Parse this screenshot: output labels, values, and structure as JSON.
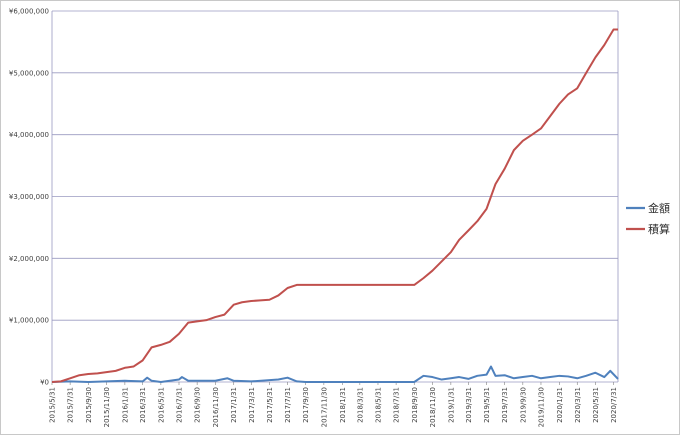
{
  "chart_data": {
    "type": "line",
    "y_ticks": [
      "¥0",
      "¥1,000,000",
      "¥2,000,000",
      "¥3,000,000",
      "¥4,000,000",
      "¥5,000,000",
      "¥6,000,000"
    ],
    "ylim": [
      0,
      6000000
    ],
    "grid": true,
    "legend_position": "right",
    "x_tick_labels": [
      "2015/5/31",
      "2015/7/31",
      "2015/9/30",
      "2015/11/30",
      "2016/1/31",
      "2016/3/31",
      "2016/5/31",
      "2016/7/31",
      "2016/9/30",
      "2016/11/30",
      "2017/1/31",
      "2017/3/31",
      "2017/5/31",
      "2017/7/31",
      "2017/9/30",
      "2017/11/30",
      "2018/1/31",
      "2018/3/31",
      "2018/5/31",
      "2018/7/31",
      "2018/9/30",
      "2018/11/30",
      "2019/1/31",
      "2019/3/31",
      "2019/5/31",
      "2019/7/31",
      "2019/9/30",
      "2019/11/30",
      "2020/1/31",
      "2020/3/31",
      "2020/5/31",
      "2020/7/31"
    ],
    "series": [
      {
        "name": "積算",
        "color": "#c0504d",
        "points": [
          [
            "2015/5/31",
            0
          ],
          [
            "2015/6/30",
            10000
          ],
          [
            "2015/7/31",
            60000
          ],
          [
            "2015/8/31",
            110000
          ],
          [
            "2015/9/30",
            130000
          ],
          [
            "2015/10/31",
            140000
          ],
          [
            "2015/11/30",
            160000
          ],
          [
            "2015/12/31",
            180000
          ],
          [
            "2016/1/31",
            230000
          ],
          [
            "2016/2/29",
            250000
          ],
          [
            "2016/3/31",
            350000
          ],
          [
            "2016/4/30",
            560000
          ],
          [
            "2016/5/31",
            600000
          ],
          [
            "2016/6/30",
            650000
          ],
          [
            "2016/7/31",
            780000
          ],
          [
            "2016/8/31",
            960000
          ],
          [
            "2016/9/30",
            980000
          ],
          [
            "2016/10/31",
            1000000
          ],
          [
            "2016/11/30",
            1050000
          ],
          [
            "2016/12/31",
            1090000
          ],
          [
            "2017/1/31",
            1250000
          ],
          [
            "2017/2/28",
            1290000
          ],
          [
            "2017/3/31",
            1310000
          ],
          [
            "2017/4/30",
            1320000
          ],
          [
            "2017/5/31",
            1330000
          ],
          [
            "2017/6/30",
            1400000
          ],
          [
            "2017/7/31",
            1520000
          ],
          [
            "2017/8/31",
            1570000
          ],
          [
            "2017/9/30",
            1570000
          ],
          [
            "2018/9/30",
            1570000
          ],
          [
            "2018/10/31",
            1680000
          ],
          [
            "2018/11/30",
            1800000
          ],
          [
            "2018/12/31",
            1950000
          ],
          [
            "2019/1/31",
            2100000
          ],
          [
            "2019/2/28",
            2300000
          ],
          [
            "2019/3/31",
            2450000
          ],
          [
            "2019/4/30",
            2600000
          ],
          [
            "2019/5/31",
            2800000
          ],
          [
            "2019/6/30",
            3200000
          ],
          [
            "2019/7/31",
            3450000
          ],
          [
            "2019/8/31",
            3750000
          ],
          [
            "2019/9/30",
            3900000
          ],
          [
            "2019/10/31",
            4000000
          ],
          [
            "2019/11/30",
            4100000
          ],
          [
            "2019/12/31",
            4300000
          ],
          [
            "2020/1/31",
            4500000
          ],
          [
            "2020/2/29",
            4650000
          ],
          [
            "2020/3/31",
            4750000
          ],
          [
            "2020/4/30",
            5000000
          ],
          [
            "2020/5/31",
            5250000
          ],
          [
            "2020/6/30",
            5450000
          ],
          [
            "2020/7/31",
            5700000
          ],
          [
            "2020/8/15",
            5700000
          ]
        ]
      },
      {
        "name": "金額",
        "color": "#4f81bd",
        "points": [
          [
            "2015/5/31",
            0
          ],
          [
            "2015/7/31",
            10000
          ],
          [
            "2015/9/30",
            0
          ],
          [
            "2016/1/31",
            20000
          ],
          [
            "2016/3/31",
            10000
          ],
          [
            "2016/4/15",
            70000
          ],
          [
            "2016/4/30",
            20000
          ],
          [
            "2016/5/31",
            0
          ],
          [
            "2016/7/31",
            40000
          ],
          [
            "2016/8/10",
            80000
          ],
          [
            "2016/8/31",
            20000
          ],
          [
            "2016/11/30",
            20000
          ],
          [
            "2017/1/10",
            60000
          ],
          [
            "2017/1/31",
            20000
          ],
          [
            "2017/3/31",
            10000
          ],
          [
            "2017/6/30",
            40000
          ],
          [
            "2017/7/31",
            70000
          ],
          [
            "2017/8/31",
            10000
          ],
          [
            "2017/9/30",
            0
          ],
          [
            "2018/9/30",
            0
          ],
          [
            "2018/10/31",
            100000
          ],
          [
            "2018/11/30",
            80000
          ],
          [
            "2018/12/31",
            40000
          ],
          [
            "2019/1/31",
            60000
          ],
          [
            "2019/2/28",
            80000
          ],
          [
            "2019/3/31",
            50000
          ],
          [
            "2019/4/30",
            100000
          ],
          [
            "2019/5/31",
            120000
          ],
          [
            "2019/6/15",
            250000
          ],
          [
            "2019/6/30",
            100000
          ],
          [
            "2019/7/31",
            110000
          ],
          [
            "2019/8/31",
            60000
          ],
          [
            "2019/9/30",
            80000
          ],
          [
            "2019/10/31",
            100000
          ],
          [
            "2019/11/30",
            60000
          ],
          [
            "2019/12/31",
            80000
          ],
          [
            "2020/1/31",
            100000
          ],
          [
            "2020/2/29",
            90000
          ],
          [
            "2020/3/31",
            60000
          ],
          [
            "2020/4/30",
            100000
          ],
          [
            "2020/5/31",
            150000
          ],
          [
            "2020/6/30",
            80000
          ],
          [
            "2020/7/20",
            180000
          ],
          [
            "2020/8/15",
            50000
          ]
        ]
      }
    ]
  }
}
